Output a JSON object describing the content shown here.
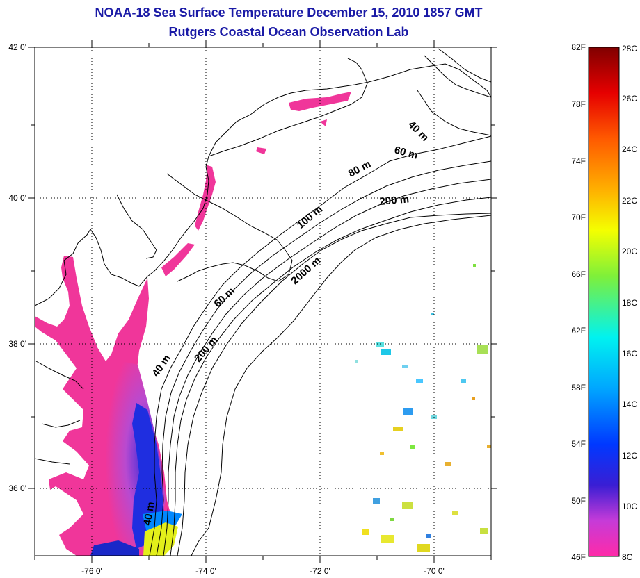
{
  "title": {
    "line1": "NOAA-18 Sea Surface Temperature December 15, 2010 1857 GMT",
    "line2": "Rutgers Coastal Ocean Observation Lab"
  },
  "map": {
    "lat_labels": [
      "42 0'",
      "40 0'",
      "38 0'",
      "36 0'"
    ],
    "lon_labels": [
      "-76 0'",
      "-74 0'",
      "-72 0'",
      "-70 0'"
    ],
    "contour_labels": [
      "40 m",
      "60 m",
      "80 m",
      "200 m",
      "100 m",
      "2000 m",
      "60 m",
      "40 m",
      "200 m",
      "40 m"
    ],
    "colors": {
      "water_cold": "#f0369a",
      "land": "#ffffff",
      "coast": "#000000"
    }
  },
  "colorbar": {
    "fahrenheit_labels": [
      "82F",
      "78F",
      "74F",
      "70F",
      "66F",
      "62F",
      "58F",
      "54F",
      "50F",
      "46F"
    ],
    "celsius_labels": [
      "28C",
      "26C",
      "24C",
      "22C",
      "20C",
      "18C",
      "16C",
      "14C",
      "12C",
      "10C",
      "8C"
    ],
    "gradient": [
      "#ff2aa8",
      "#c63bd8",
      "#3a1ed4",
      "#0038ff",
      "#00a6ff",
      "#00f2f0",
      "#7ef03a",
      "#f4ff00",
      "#ffb000",
      "#ff5a00",
      "#e60000",
      "#800000"
    ]
  }
}
